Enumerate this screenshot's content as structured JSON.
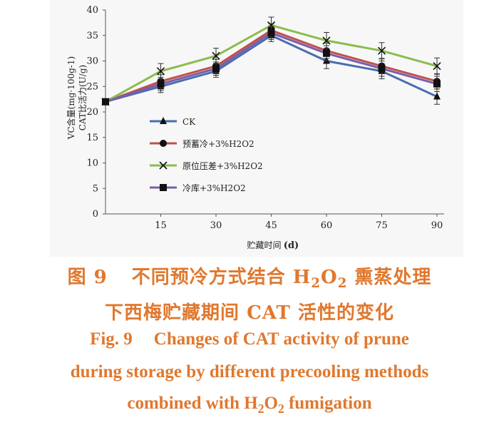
{
  "chart_data": {
    "type": "line",
    "ylabel_line1": "VC含量(mg·100g-1)",
    "ylabel_line2": "CAT比活力(U/g)",
    "xlabel": "贮藏时间",
    "xlabel_unit": "(d)",
    "ylim": [
      0,
      40
    ],
    "yticks": [
      "0",
      "5",
      "10",
      "15",
      "20",
      "25",
      "30",
      "35",
      "40"
    ],
    "xticks": [
      "15",
      "30",
      "45",
      "60",
      "75",
      "90"
    ],
    "x": [
      0,
      15,
      30,
      45,
      60,
      75,
      90
    ],
    "legend_position": "center-left",
    "series": [
      {
        "name": "CK",
        "marker": "triangle",
        "color": "#4a6db0",
        "values": [
          22,
          25,
          28,
          35,
          30,
          28,
          23
        ],
        "err": [
          0,
          1.2,
          1.2,
          1.2,
          1.5,
          1.5,
          1.5
        ]
      },
      {
        "name": "预蓄冷+3%H2O2",
        "marker": "circle",
        "color": "#c0504d",
        "values": [
          22,
          26,
          29,
          36,
          32,
          29,
          26
        ],
        "err": [
          0,
          1.3,
          1.3,
          1.3,
          1.5,
          1.5,
          1.5
        ]
      },
      {
        "name": "原位压差+3%H2O2",
        "marker": "cross",
        "color": "#8bbc4e",
        "values": [
          22,
          28,
          31,
          37,
          34,
          32,
          29
        ],
        "err": [
          0,
          1.5,
          1.5,
          1.6,
          1.6,
          1.6,
          1.6
        ]
      },
      {
        "name": "冷库+3%H2O2",
        "marker": "square",
        "color": "#7a5ea8",
        "values": [
          22,
          25.5,
          28.5,
          35.5,
          31.5,
          28.5,
          25.5
        ],
        "err": [
          0,
          1.3,
          1.3,
          1.3,
          1.5,
          1.5,
          1.5
        ]
      }
    ]
  },
  "caption": {
    "zh_fig": "图 9",
    "zh_line1_pre": "不同预冷方式结合 H",
    "zh_line1_sub1": "2",
    "zh_line1_mid": "O",
    "zh_line1_sub2": "2",
    "zh_line1_post": " 熏蒸处理",
    "zh_line2": "下西梅贮藏期间 CAT 活性的变化",
    "en_fig": "Fig. 9",
    "en_line1": "Changes of CAT activity of prune",
    "en_line2": "during storage by different precooling methods",
    "en_line3_pre": "combined with H",
    "en_line3_sub1": "2",
    "en_line3_mid": "O",
    "en_line3_sub2": "2",
    "en_line3_post": " fumigation"
  }
}
